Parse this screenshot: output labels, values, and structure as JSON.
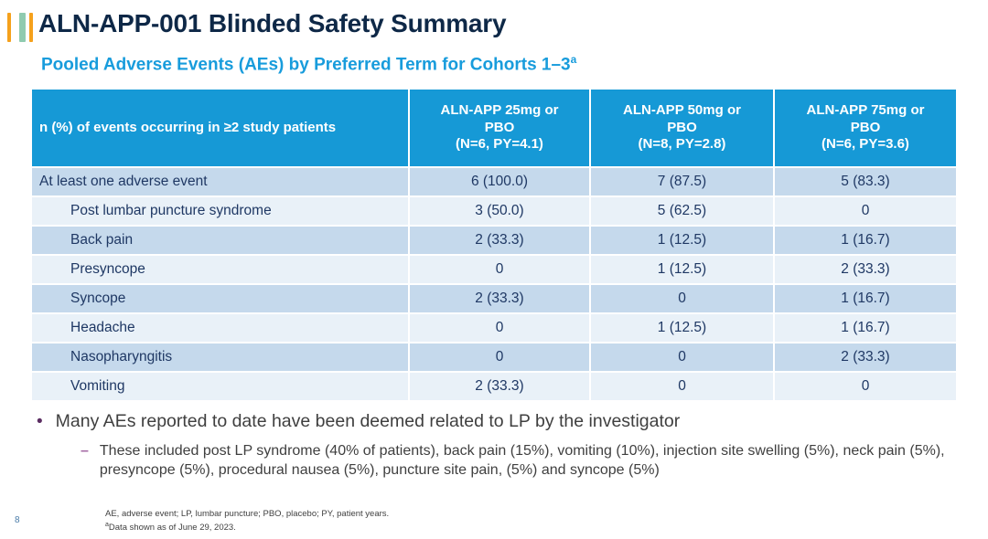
{
  "header": {
    "title": "ALN-APP-001 Blinded Safety Summary",
    "subtitle": "Pooled Adverse Events (AEs) by Preferred Term for Cohorts 1–3",
    "subtitle_sup": "a"
  },
  "colors": {
    "accent_blue": "#1699D6",
    "title_navy": "#0E2847",
    "row_medium": "#C5D9EC",
    "row_light": "#E9F1F8",
    "bullet_purple": "#5B2D62",
    "dash_mauve": "#A56BA5",
    "bar_orange": "#F5A11C",
    "bar_teal": "#8FCBB0"
  },
  "table": {
    "header_col0": "n (%) of events occurring in ≥2 study patients",
    "columns": [
      {
        "line1": "ALN-APP 25mg or",
        "line2": "PBO",
        "line3": "(N=6, PY=4.1)"
      },
      {
        "line1": "ALN-APP 50mg or",
        "line2": "PBO",
        "line3": "(N=8, PY=2.8)"
      },
      {
        "line1": "ALN-APP 75mg or",
        "line2": "PBO",
        "line3": "(N=6, PY=3.6)"
      }
    ],
    "rows": [
      {
        "term": "At least one adverse event",
        "c1": "6 (100.0)",
        "c2": "7 (87.5)",
        "c3": "5 (83.3)"
      },
      {
        "term": "Post lumbar puncture syndrome",
        "c1": "3 (50.0)",
        "c2": "5 (62.5)",
        "c3": "0"
      },
      {
        "term": "Back pain",
        "c1": "2 (33.3)",
        "c2": "1 (12.5)",
        "c3": "1 (16.7)"
      },
      {
        "term": "Presyncope",
        "c1": "0",
        "c2": "1 (12.5)",
        "c3": "2 (33.3)"
      },
      {
        "term": "Syncope",
        "c1": "2 (33.3)",
        "c2": "0",
        "c3": "1 (16.7)"
      },
      {
        "term": "Headache",
        "c1": "0",
        "c2": "1 (12.5)",
        "c3": "1 (16.7)"
      },
      {
        "term": "Nasopharyngitis",
        "c1": "0",
        "c2": "0",
        "c3": "2 (33.3)"
      },
      {
        "term": "Vomiting",
        "c1": "2 (33.3)",
        "c2": "0",
        "c3": "0"
      }
    ]
  },
  "bullets": {
    "dot": "•",
    "main": "Many AEs reported to date have been deemed related to LP by the investigator",
    "dash": "–",
    "sub": "These included post LP syndrome (40% of patients), back pain (15%), vomiting (10%), injection site swelling (5%), neck pain (5%), presyncope (5%), procedural nausea (5%), puncture site pain, (5%) and syncope (5%)"
  },
  "footnotes": {
    "line1": "AE, adverse event; LP, lumbar puncture; PBO, placebo; PY, patient years.",
    "line2_sup": "a",
    "line2": "Data shown as of June 29, 2023."
  },
  "page_number": "8"
}
